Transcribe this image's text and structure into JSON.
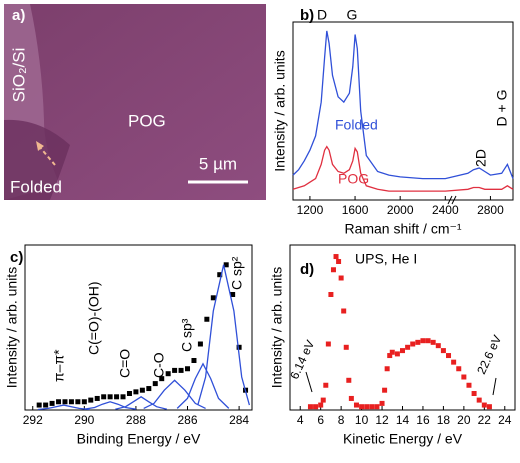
{
  "image_panel": {
    "panel_label": "a)",
    "labels": [
      "SiO₂/Si",
      "POG",
      "Folded"
    ],
    "scale_bar": "5 µm"
  },
  "chart_data": [
    {
      "type": "line",
      "panel_label": "b)",
      "xlabel": "Raman shift / cm⁻¹",
      "ylabel": "Intensity / arb. units",
      "xlim": [
        1050,
        3000
      ],
      "ylim": [
        0,
        1
      ],
      "xticks": [
        1200,
        1600,
        2000,
        2400,
        2800
      ],
      "annotations": [
        "D",
        "G",
        "2D",
        "D + G"
      ],
      "x": [
        1050,
        1100,
        1150,
        1200,
        1250,
        1300,
        1330,
        1350,
        1370,
        1400,
        1450,
        1500,
        1550,
        1580,
        1600,
        1620,
        1650,
        1700,
        1800,
        1900,
        2000,
        2200,
        2400,
        2600,
        2650,
        2700,
        2750,
        2800,
        2900,
        2950,
        3000
      ],
      "series": [
        {
          "name": "Folded",
          "color": "#3050d8",
          "mode": "line",
          "values": [
            0.14,
            0.17,
            0.22,
            0.28,
            0.36,
            0.55,
            0.8,
            0.95,
            0.88,
            0.7,
            0.58,
            0.55,
            0.6,
            0.75,
            0.93,
            0.85,
            0.5,
            0.25,
            0.16,
            0.14,
            0.13,
            0.12,
            0.12,
            0.15,
            0.17,
            0.18,
            0.16,
            0.14,
            0.15,
            0.2,
            0.12
          ]
        },
        {
          "name": "POG",
          "color": "#e03040",
          "mode": "line",
          "values": [
            0.06,
            0.07,
            0.08,
            0.1,
            0.12,
            0.2,
            0.28,
            0.3,
            0.28,
            0.2,
            0.16,
            0.15,
            0.17,
            0.22,
            0.29,
            0.27,
            0.15,
            0.08,
            0.06,
            0.05,
            0.05,
            0.05,
            0.05,
            0.06,
            0.07,
            0.07,
            0.06,
            0.06,
            0.06,
            0.08,
            0.06
          ]
        }
      ]
    },
    {
      "type": "scatter",
      "panel_label": "c)",
      "xlabel": "Binding Energy / eV",
      "ylabel": "Intensity / arb. units",
      "xlim": [
        292.3,
        283.5
      ],
      "ylim": [
        0,
        1
      ],
      "xticks": [
        292,
        290,
        288,
        286,
        284
      ],
      "series": [
        {
          "color": "#000000",
          "mode": "markers",
          "x": [
            291.75,
            291.5,
            291.25,
            291,
            290.75,
            290.5,
            290.25,
            290,
            289.75,
            289.5,
            289.25,
            289,
            288.75,
            288.5,
            288.25,
            288,
            287.75,
            287.5,
            287.25,
            287,
            286.75,
            286.5,
            286.25,
            286,
            285.75,
            285.5,
            285.25,
            285,
            284.75,
            284.5,
            284.25,
            284,
            283.75
          ],
          "values": [
            0.03,
            0.03,
            0.04,
            0.05,
            0.05,
            0.05,
            0.05,
            0.05,
            0.06,
            0.07,
            0.08,
            0.08,
            0.08,
            0.08,
            0.1,
            0.11,
            0.12,
            0.13,
            0.16,
            0.19,
            0.22,
            0.24,
            0.24,
            0.25,
            0.3,
            0.4,
            0.55,
            0.68,
            0.82,
            0.88,
            0.7,
            0.38,
            0.12
          ]
        },
        {
          "name": "C sp²",
          "color": "#3050d8",
          "mode": "line",
          "x": [
            283.6,
            283.9,
            284.2,
            284.6,
            285.0,
            285.3,
            285.6
          ],
          "values": [
            0.03,
            0.2,
            0.6,
            0.88,
            0.6,
            0.2,
            0.03
          ]
        },
        {
          "name": "C sp³",
          "color": "#3050d8",
          "mode": "line",
          "x": [
            284.4,
            284.8,
            285.1,
            285.4,
            285.7,
            286.0,
            286.4
          ],
          "values": [
            0.01,
            0.07,
            0.19,
            0.28,
            0.19,
            0.07,
            0.01
          ]
        },
        {
          "name": "C-O",
          "color": "#3050d8",
          "mode": "line",
          "x": [
            285.3,
            285.7,
            286.1,
            286.5,
            286.9,
            287.3,
            287.7
          ],
          "values": [
            0.01,
            0.04,
            0.12,
            0.18,
            0.12,
            0.04,
            0.01
          ]
        },
        {
          "name": "C=O",
          "color": "#3050d8",
          "mode": "line",
          "x": [
            286.8,
            287.2,
            287.5,
            287.8,
            288.1,
            288.4,
            288.8
          ],
          "values": [
            0.005,
            0.02,
            0.05,
            0.08,
            0.05,
            0.02,
            0.005
          ]
        },
        {
          "name": "C(=O)-(OH)",
          "color": "#3050d8",
          "mode": "line",
          "x": [
            288,
            288.4,
            288.7,
            289,
            289.3,
            289.6,
            290
          ],
          "values": [
            0.005,
            0.015,
            0.035,
            0.05,
            0.035,
            0.015,
            0.005
          ]
        },
        {
          "name": "π–π*",
          "color": "#3050d8",
          "mode": "line",
          "x": [
            289.8,
            290.2,
            290.5,
            290.8,
            291.1,
            291.4,
            291.8
          ],
          "values": [
            0.003,
            0.01,
            0.02,
            0.03,
            0.02,
            0.01,
            0.003
          ]
        }
      ]
    },
    {
      "type": "scatter",
      "panel_label": "d)",
      "title": "UPS, He I",
      "xlabel": "Kinetic Energy / eV",
      "ylabel": "Intensity / arb. units",
      "xlim": [
        3,
        25
      ],
      "ylim": [
        0,
        1
      ],
      "xticks": [
        4,
        6,
        8,
        10,
        12,
        14,
        16,
        18,
        20,
        22,
        24
      ],
      "annotations": [
        "6.14 eV",
        "22.6 eV"
      ],
      "series": [
        {
          "color": "#e82020",
          "mode": "markers",
          "x": [
            5,
            5.5,
            6,
            6.25,
            6.5,
            6.75,
            7,
            7.25,
            7.5,
            7.75,
            8,
            8.25,
            8.5,
            8.75,
            9,
            9.5,
            10,
            10.5,
            11,
            11.5,
            12,
            12.25,
            12.5,
            12.75,
            13,
            13.5,
            14,
            14.5,
            15,
            15.5,
            16,
            16.5,
            17,
            17.5,
            18,
            18.5,
            19,
            19.5,
            20,
            20.5,
            21,
            21.5,
            22,
            22.5
          ],
          "values": [
            0.02,
            0.02,
            0.03,
            0.06,
            0.15,
            0.4,
            0.7,
            0.85,
            0.93,
            0.9,
            0.8,
            0.6,
            0.38,
            0.18,
            0.07,
            0.03,
            0.02,
            0.02,
            0.02,
            0.02,
            0.04,
            0.12,
            0.25,
            0.33,
            0.35,
            0.34,
            0.36,
            0.38,
            0.4,
            0.41,
            0.42,
            0.42,
            0.41,
            0.39,
            0.36,
            0.33,
            0.29,
            0.25,
            0.2,
            0.15,
            0.1,
            0.06,
            0.03,
            0.02
          ]
        }
      ]
    }
  ]
}
